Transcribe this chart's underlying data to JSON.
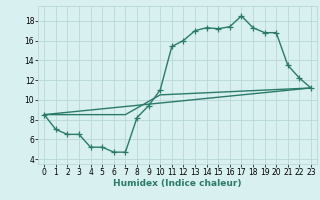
{
  "title": "",
  "xlabel": "Humidex (Indice chaleur)",
  "bg_color": "#d8f0f0",
  "line_color": "#2a7a6a",
  "grid_color": "#b8d8d8",
  "xlim": [
    -0.5,
    23.5
  ],
  "ylim": [
    3.5,
    19.5
  ],
  "xticks": [
    0,
    1,
    2,
    3,
    4,
    5,
    6,
    7,
    8,
    9,
    10,
    11,
    12,
    13,
    14,
    15,
    16,
    17,
    18,
    19,
    20,
    21,
    22,
    23
  ],
  "yticks": [
    4,
    6,
    8,
    10,
    12,
    14,
    16,
    18
  ],
  "line1_x": [
    0,
    1,
    2,
    3,
    4,
    5,
    6,
    7,
    8,
    9,
    10,
    11,
    12,
    13,
    14,
    15,
    16,
    17,
    18,
    19,
    20,
    21,
    22,
    23
  ],
  "line1_y": [
    8.5,
    7.0,
    6.5,
    6.5,
    5.2,
    5.2,
    4.7,
    4.7,
    8.2,
    9.4,
    11.0,
    15.4,
    16.0,
    17.0,
    17.3,
    17.2,
    17.4,
    18.5,
    17.3,
    16.8,
    16.8,
    13.5,
    12.2,
    11.2
  ],
  "line2_x": [
    0,
    23
  ],
  "line2_y": [
    8.5,
    11.2
  ],
  "line3_x": [
    0,
    7,
    10,
    23
  ],
  "line3_y": [
    8.5,
    8.5,
    10.5,
    11.2
  ],
  "marker": "+",
  "markersize": 4,
  "linewidth": 1.0,
  "tick_fontsize": 5.5,
  "xlabel_fontsize": 6.5
}
